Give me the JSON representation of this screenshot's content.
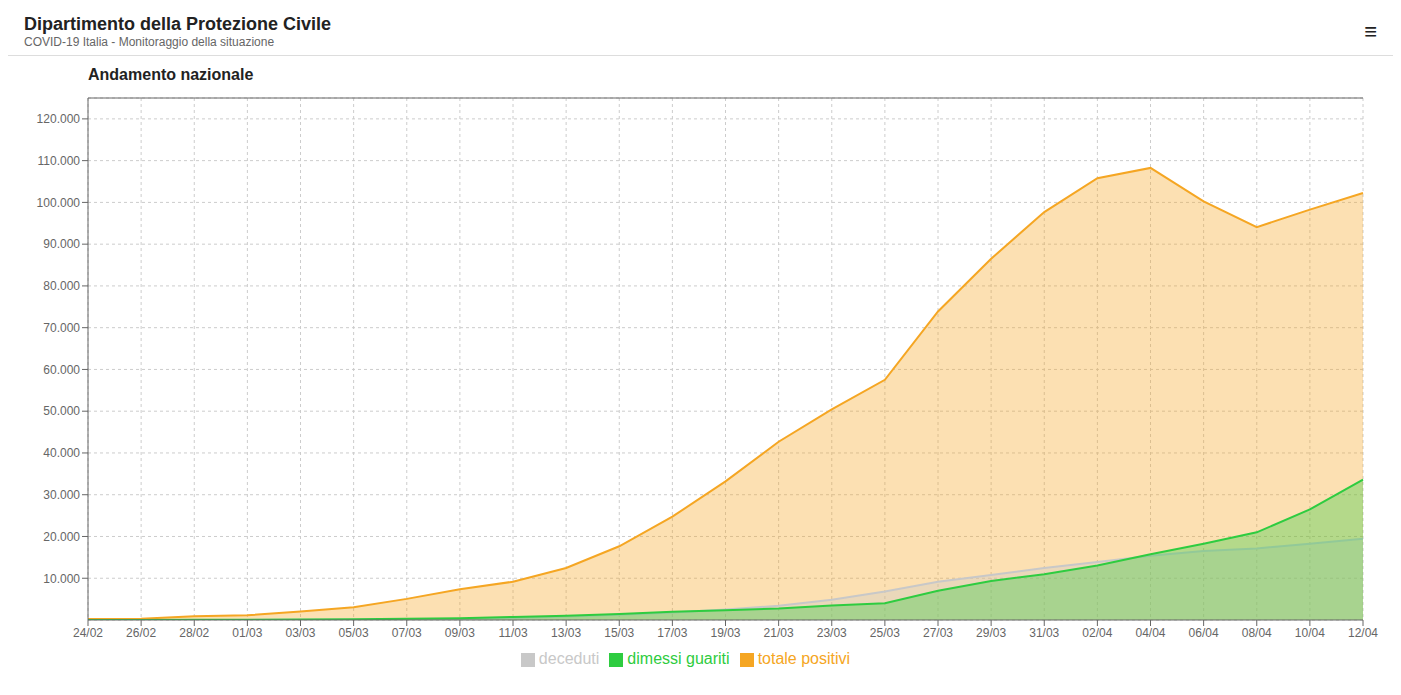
{
  "chart_data": {
    "type": "area",
    "title": "Andamento nazionale",
    "annotations": [
      "Dipartimento della Protezione Civile",
      "COVID-19 Italia - Monitoraggio della situazione",
      "≡"
    ],
    "categories": [
      "24/02",
      "26/02",
      "28/02",
      "01/03",
      "03/03",
      "05/03",
      "07/03",
      "09/03",
      "11/03",
      "13/03",
      "15/03",
      "17/03",
      "19/03",
      "21/03",
      "23/03",
      "25/03",
      "27/03",
      "29/03",
      "31/03",
      "02/04",
      "04/04",
      "06/04",
      "08/04",
      "10/04",
      "12/04"
    ],
    "series": [
      {
        "name": "totale positivi",
        "color": "#f5a623",
        "values": [
          229,
          322,
          888,
          1128,
          2036,
          3073,
          5061,
          7375,
          9172,
          12462,
          17660,
          24747,
          33190,
          42681,
          50418,
          57521,
          73880,
          86498,
          97689,
          105792,
          108257,
          100269,
          94067,
          98273,
          102253
        ]
      },
      {
        "name": "deceduti",
        "color": "#c8c8c8",
        "values": [
          7,
          11,
          21,
          29,
          52,
          79,
          148,
          233,
          463,
          827,
          1266,
          1809,
          2503,
          3405,
          4825,
          6820,
          9134,
          10779,
          12428,
          13915,
          15362,
          16523,
          17127,
          18279,
          19468
        ]
      },
      {
        "name": "dimessi guariti",
        "color": "#2ecc40",
        "values": [
          1,
          1,
          46,
          50,
          149,
          160,
          276,
          414,
          724,
          1045,
          1439,
          1966,
          2335,
          2749,
          3500,
          4025,
          7024,
          9362,
          10950,
          13030,
          15729,
          18278,
          20996,
          26491,
          33642
        ]
      }
    ],
    "ylim": [
      0,
      125000
    ],
    "yticks": [
      {
        "value": 10000,
        "label": "10.000"
      },
      {
        "value": 20000,
        "label": "20.000"
      },
      {
        "value": 30000,
        "label": "30.000"
      },
      {
        "value": 40000,
        "label": "40.000"
      },
      {
        "value": 50000,
        "label": "50.000"
      },
      {
        "value": 60000,
        "label": "60.000"
      },
      {
        "value": 70000,
        "label": "70.000"
      },
      {
        "value": 80000,
        "label": "80.000"
      },
      {
        "value": 90000,
        "label": "90.000"
      },
      {
        "value": 100000,
        "label": "100.000"
      },
      {
        "value": 110000,
        "label": "110.000"
      },
      {
        "value": 120000,
        "label": "120.000"
      }
    ],
    "grid": true,
    "legend": "bottom"
  }
}
